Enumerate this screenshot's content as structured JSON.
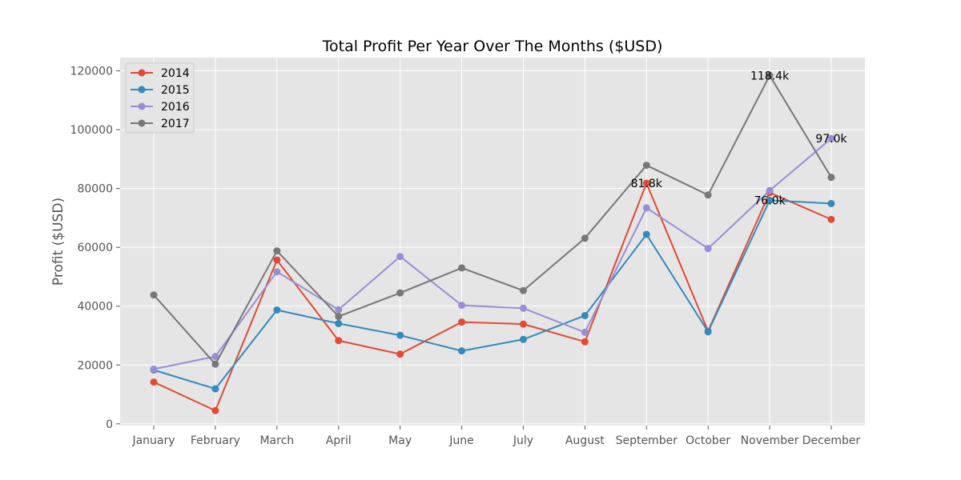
{
  "chart_data": {
    "type": "line",
    "title": "Total Profit Per Year Over The Months ($USD)",
    "xlabel": "",
    "ylabel": "Profit ($USD)",
    "categories": [
      "January",
      "February",
      "March",
      "April",
      "May",
      "June",
      "July",
      "August",
      "September",
      "October",
      "November",
      "December"
    ],
    "yticks": [
      0,
      20000,
      40000,
      60000,
      80000,
      100000,
      120000
    ],
    "ylim": [
      -600,
      124500
    ],
    "grid": true,
    "legend_position": "top-left",
    "series": [
      {
        "name": "2014",
        "color": "#E24A33",
        "values": [
          14200,
          4500,
          55700,
          28300,
          23700,
          34600,
          33900,
          27900,
          81800,
          31500,
          78600,
          69500
        ]
      },
      {
        "name": "2015",
        "color": "#348ABD",
        "values": [
          18300,
          11900,
          38700,
          34100,
          30100,
          24800,
          28700,
          36800,
          64400,
          31300,
          76000,
          74900
        ]
      },
      {
        "name": "2016",
        "color": "#988ED5",
        "values": [
          18600,
          22900,
          51700,
          38800,
          56900,
          40300,
          39300,
          31100,
          73400,
          59600,
          79300,
          97000
        ]
      },
      {
        "name": "2017",
        "color": "#777777",
        "values": [
          43800,
          20300,
          58800,
          36500,
          44500,
          53000,
          45300,
          63100,
          87900,
          77800,
          118400,
          83800
        ]
      }
    ],
    "annotations": [
      {
        "text": "81.8k",
        "x": "September",
        "y": 81800
      },
      {
        "text": "118.4k",
        "x": "November",
        "y": 118400
      },
      {
        "text": "76.0k",
        "x": "November",
        "y": 76000
      },
      {
        "text": "97.0k",
        "x": "December",
        "y": 97000
      }
    ]
  }
}
